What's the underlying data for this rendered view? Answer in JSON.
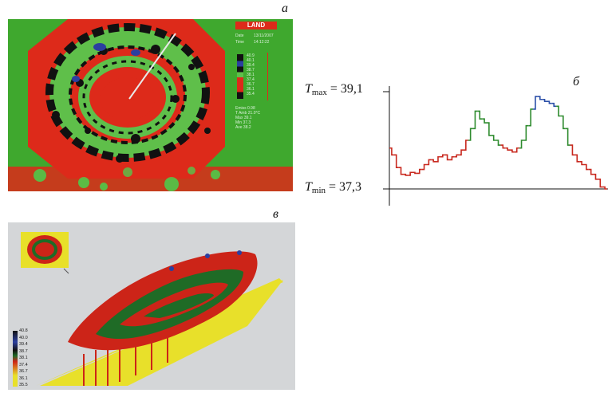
{
  "panels": {
    "a": {
      "label": "а",
      "logo": "LAND",
      "info": [
        "Date",
        "Time"
      ],
      "info_values": [
        "13/11/2007",
        "14:12:22"
      ],
      "scale": [
        "40.9",
        "40.1",
        "39.4",
        "38.7",
        "38.1",
        "37.4",
        "36.7",
        "36.1",
        "35.4"
      ],
      "stats": [
        "Emiss   0.98",
        "T Amb  21.0°C",
        "Max  39.1",
        "Min  37.3",
        "Ave  38.2"
      ],
      "palette": {
        "background": "#3fa82e",
        "hot": "#dd2a1a",
        "mid": "#5fbf4a",
        "cool": "#111111",
        "peak": "#2b3fa0"
      }
    },
    "b": {
      "label": "б",
      "tmax": {
        "symbol": "T",
        "sub": "max",
        "value": "= 39,1"
      },
      "tmin": {
        "symbol": "T",
        "sub": "min",
        "value": "= 37,3"
      },
      "profile_colors": {
        "low": "#c8281e",
        "mid": "#2e8b2e",
        "high": "#2b4fa8"
      },
      "profile": [
        0.42,
        0.35,
        0.22,
        0.15,
        0.14,
        0.17,
        0.16,
        0.2,
        0.25,
        0.3,
        0.28,
        0.33,
        0.35,
        0.3,
        0.33,
        0.35,
        0.4,
        0.5,
        0.62,
        0.8,
        0.72,
        0.68,
        0.55,
        0.5,
        0.45,
        0.42,
        0.4,
        0.38,
        0.42,
        0.5,
        0.65,
        0.82,
        0.95,
        0.92,
        0.9,
        0.88,
        0.85,
        0.75,
        0.62,
        0.45,
        0.35,
        0.28,
        0.25,
        0.2,
        0.15,
        0.1,
        0.02,
        0.0
      ]
    },
    "c": {
      "label": "в",
      "scale": [
        "40.8",
        "40.0",
        "39.4",
        "38.7",
        "38.1",
        "37.4",
        "36.7",
        "36.1",
        "35.5"
      ]
    }
  }
}
